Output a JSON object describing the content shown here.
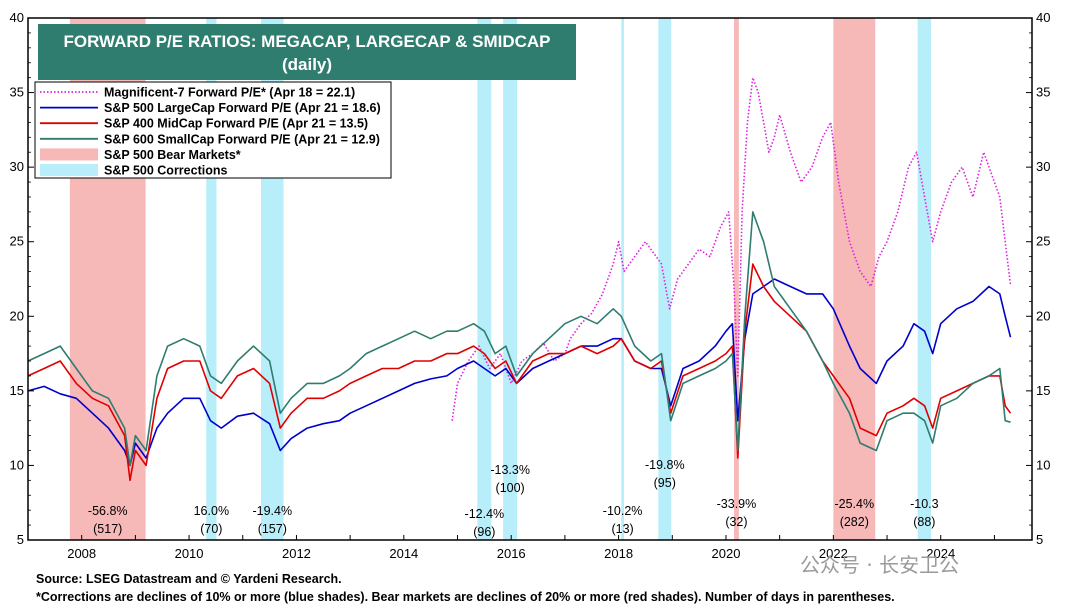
{
  "chart_data": {
    "type": "line",
    "title": "FORWARD P/E RATIOS: MEGACAP, LARGECAP & SMIDCAP",
    "subtitle": "(daily)",
    "xlim": [
      2007.0,
      2025.7
    ],
    "ylim": [
      5,
      40
    ],
    "x_ticks": [
      2008,
      2010,
      2012,
      2014,
      2016,
      2018,
      2020,
      2022,
      2024
    ],
    "y_ticks": [
      5,
      10,
      15,
      20,
      25,
      30,
      35,
      40
    ],
    "legend_position": "top-left",
    "legend": [
      {
        "label": "Magnificent-7 Forward P/E* (Apr 18 = 22.1)",
        "color": "#e020e0",
        "style": "dotted"
      },
      {
        "label": "S&P 500 LargeCap Forward P/E (Apr 21 = 18.6)",
        "color": "#0000cc",
        "style": "solid"
      },
      {
        "label": "S&P 400 MidCap Forward P/E (Apr 21 = 13.5)",
        "color": "#e00000",
        "style": "solid"
      },
      {
        "label": "S&P 600 SmallCap Forward P/E (Apr 21 = 12.9)",
        "color": "#2e7d6e",
        "style": "solid"
      },
      {
        "label": "S&P 500 Bear Markets*",
        "color": "#f7b8b8",
        "style": "box"
      },
      {
        "label": "S&P 500 Corrections",
        "color": "#b8eefa",
        "style": "box"
      }
    ],
    "bear_markets": [
      {
        "start": 2007.78,
        "end": 2009.19,
        "pct": "-56.8%",
        "days": "(517)"
      },
      {
        "start": 2020.15,
        "end": 2020.24,
        "pct": "-33.9%",
        "days": "(32)"
      },
      {
        "start": 2022.0,
        "end": 2022.78,
        "pct": "-25.4%",
        "days": "(282)"
      }
    ],
    "corrections": [
      {
        "start": 2010.32,
        "end": 2010.51,
        "pct": "16.0%",
        "days": "(70)"
      },
      {
        "start": 2011.34,
        "end": 2011.76,
        "pct": "-19.4%",
        "days": "(157)"
      },
      {
        "start": 2015.37,
        "end": 2015.63,
        "pct": "-12.4%",
        "days": "(96)"
      },
      {
        "start": 2015.85,
        "end": 2016.11,
        "pct": "-13.3%",
        "days": "(100)"
      },
      {
        "start": 2018.05,
        "end": 2018.1,
        "pct": "-10.2%",
        "days": "(13)"
      },
      {
        "start": 2018.74,
        "end": 2018.98,
        "pct": "-19.8%",
        "days": "(95)"
      },
      {
        "start": 2023.57,
        "end": 2023.82,
        "pct": "-10.3",
        "days": "(88)"
      }
    ],
    "series": [
      {
        "name": "Magnificent-7 Forward P/E*",
        "color": "#e020e0",
        "dash": "1.5,2",
        "x": [
          2014.9,
          2015.0,
          2015.2,
          2015.4,
          2015.6,
          2015.8,
          2016.0,
          2016.2,
          2016.4,
          2016.6,
          2016.8,
          2017.0,
          2017.1,
          2017.3,
          2017.5,
          2017.7,
          2017.9,
          2018.0,
          2018.1,
          2018.3,
          2018.5,
          2018.7,
          2018.8,
          2018.95,
          2019.1,
          2019.3,
          2019.5,
          2019.7,
          2019.9,
          2020.05,
          2020.15,
          2020.22,
          2020.3,
          2020.4,
          2020.5,
          2020.6,
          2020.7,
          2020.8,
          2020.9,
          2021.0,
          2021.2,
          2021.4,
          2021.6,
          2021.8,
          2021.95,
          2022.1,
          2022.3,
          2022.5,
          2022.7,
          2022.85,
          2023.0,
          2023.2,
          2023.4,
          2023.55,
          2023.7,
          2023.85,
          2024.0,
          2024.2,
          2024.4,
          2024.6,
          2024.8,
          2024.95,
          2025.1,
          2025.2,
          2025.3
        ],
        "y": [
          13.0,
          15.5,
          17.0,
          18.0,
          16.5,
          17.5,
          15.5,
          17.0,
          17.5,
          18.2,
          17.0,
          17.5,
          18.5,
          19.5,
          20.2,
          21.5,
          23.5,
          25.0,
          23.0,
          24.0,
          25.0,
          24.0,
          23.5,
          20.5,
          22.5,
          23.5,
          24.5,
          24.0,
          26.0,
          27.0,
          22.0,
          16.0,
          27.0,
          33.0,
          36.0,
          35.0,
          33.0,
          31.0,
          32.0,
          33.5,
          31.0,
          29.0,
          30.0,
          32.0,
          33.0,
          29.0,
          25.0,
          23.0,
          22.0,
          24.0,
          25.0,
          27.0,
          30.0,
          31.0,
          28.0,
          25.0,
          27.0,
          29.0,
          30.0,
          28.0,
          31.0,
          29.5,
          28.0,
          25.0,
          22.1
        ]
      },
      {
        "name": "S&P 500 LargeCap Forward P/E",
        "color": "#0000cc",
        "dash": "",
        "x": [
          2007.0,
          2007.3,
          2007.6,
          2007.9,
          2008.2,
          2008.5,
          2008.8,
          2008.9,
          2009.0,
          2009.2,
          2009.4,
          2009.6,
          2009.9,
          2010.2,
          2010.4,
          2010.6,
          2010.9,
          2011.2,
          2011.5,
          2011.7,
          2011.9,
          2012.2,
          2012.5,
          2012.8,
          2013.0,
          2013.3,
          2013.6,
          2013.9,
          2014.2,
          2014.5,
          2014.8,
          2015.0,
          2015.3,
          2015.5,
          2015.7,
          2015.9,
          2016.1,
          2016.4,
          2016.7,
          2017.0,
          2017.3,
          2017.6,
          2017.9,
          2018.05,
          2018.3,
          2018.6,
          2018.8,
          2018.97,
          2019.2,
          2019.5,
          2019.8,
          2020.0,
          2020.12,
          2020.22,
          2020.35,
          2020.5,
          2020.7,
          2020.9,
          2021.2,
          2021.5,
          2021.8,
          2022.0,
          2022.3,
          2022.5,
          2022.8,
          2023.0,
          2023.3,
          2023.5,
          2023.7,
          2023.85,
          2024.0,
          2024.3,
          2024.6,
          2024.9,
          2025.1,
          2025.2,
          2025.3
        ],
        "y": [
          15.0,
          15.3,
          14.8,
          14.5,
          13.5,
          12.5,
          11.0,
          10.0,
          11.5,
          10.5,
          12.5,
          13.5,
          14.5,
          14.5,
          13.0,
          12.5,
          13.3,
          13.5,
          12.8,
          11.0,
          11.8,
          12.5,
          12.8,
          13.0,
          13.5,
          14.0,
          14.5,
          15.0,
          15.5,
          15.8,
          16.0,
          16.5,
          17.0,
          16.5,
          16.0,
          16.5,
          15.5,
          16.5,
          17.0,
          17.5,
          18.0,
          18.0,
          18.5,
          18.5,
          17.0,
          16.5,
          16.5,
          14.0,
          16.5,
          17.0,
          18.0,
          19.0,
          19.5,
          13.0,
          18.5,
          21.5,
          22.0,
          22.5,
          22.0,
          21.5,
          21.5,
          20.5,
          18.0,
          16.5,
          15.5,
          17.0,
          18.0,
          19.5,
          19.0,
          17.5,
          19.5,
          20.5,
          21.0,
          22.0,
          21.5,
          20.0,
          18.6
        ]
      },
      {
        "name": "S&P 400 MidCap Forward P/E",
        "color": "#e00000",
        "dash": "",
        "x": [
          2007.0,
          2007.3,
          2007.6,
          2007.9,
          2008.2,
          2008.5,
          2008.8,
          2008.9,
          2009.0,
          2009.2,
          2009.4,
          2009.6,
          2009.9,
          2010.2,
          2010.4,
          2010.6,
          2010.9,
          2011.2,
          2011.5,
          2011.7,
          2011.9,
          2012.2,
          2012.5,
          2012.8,
          2013.0,
          2013.3,
          2013.6,
          2013.9,
          2014.2,
          2014.5,
          2014.8,
          2015.0,
          2015.3,
          2015.5,
          2015.7,
          2015.9,
          2016.1,
          2016.4,
          2016.7,
          2017.0,
          2017.3,
          2017.6,
          2017.9,
          2018.05,
          2018.3,
          2018.6,
          2018.8,
          2018.97,
          2019.2,
          2019.5,
          2019.8,
          2020.0,
          2020.12,
          2020.22,
          2020.35,
          2020.5,
          2020.7,
          2020.9,
          2021.2,
          2021.5,
          2021.8,
          2022.0,
          2022.3,
          2022.5,
          2022.8,
          2023.0,
          2023.3,
          2023.5,
          2023.7,
          2023.85,
          2024.0,
          2024.3,
          2024.6,
          2024.9,
          2025.1,
          2025.2,
          2025.3
        ],
        "y": [
          16.0,
          16.5,
          17.0,
          15.5,
          14.5,
          14.0,
          12.0,
          9.0,
          11.0,
          10.0,
          14.5,
          16.5,
          17.0,
          17.0,
          15.0,
          14.5,
          16.0,
          16.5,
          15.5,
          12.5,
          13.5,
          14.5,
          14.5,
          15.0,
          15.5,
          16.0,
          16.5,
          16.5,
          17.0,
          17.0,
          17.5,
          17.5,
          18.0,
          17.5,
          16.5,
          17.0,
          15.5,
          17.0,
          17.5,
          17.5,
          18.0,
          17.5,
          18.0,
          18.5,
          17.0,
          16.5,
          17.0,
          13.5,
          16.0,
          16.5,
          17.0,
          17.5,
          18.0,
          10.5,
          19.0,
          23.5,
          22.0,
          21.0,
          20.0,
          19.0,
          17.0,
          16.0,
          14.5,
          12.5,
          12.0,
          13.5,
          14.0,
          14.5,
          14.0,
          12.5,
          14.5,
          15.0,
          15.5,
          16.0,
          16.0,
          14.0,
          13.5
        ]
      },
      {
        "name": "S&P 600 SmallCap Forward P/E",
        "color": "#2e7d6e",
        "dash": "",
        "x": [
          2007.0,
          2007.3,
          2007.6,
          2007.9,
          2008.2,
          2008.5,
          2008.8,
          2008.9,
          2009.0,
          2009.2,
          2009.4,
          2009.6,
          2009.9,
          2010.2,
          2010.4,
          2010.6,
          2010.9,
          2011.2,
          2011.5,
          2011.7,
          2011.9,
          2012.2,
          2012.5,
          2012.8,
          2013.0,
          2013.3,
          2013.6,
          2013.9,
          2014.2,
          2014.5,
          2014.8,
          2015.0,
          2015.3,
          2015.5,
          2015.7,
          2015.9,
          2016.1,
          2016.4,
          2016.7,
          2017.0,
          2017.3,
          2017.6,
          2017.9,
          2018.05,
          2018.3,
          2018.6,
          2018.8,
          2018.97,
          2019.2,
          2019.5,
          2019.8,
          2020.0,
          2020.12,
          2020.22,
          2020.35,
          2020.5,
          2020.7,
          2020.9,
          2021.2,
          2021.5,
          2021.8,
          2022.0,
          2022.3,
          2022.5,
          2022.8,
          2023.0,
          2023.3,
          2023.5,
          2023.7,
          2023.85,
          2024.0,
          2024.3,
          2024.6,
          2024.9,
          2025.1,
          2025.2,
          2025.3
        ],
        "y": [
          17.0,
          17.5,
          18.0,
          16.5,
          15.0,
          14.5,
          12.5,
          10.0,
          12.0,
          11.0,
          16.0,
          18.0,
          18.5,
          18.0,
          16.0,
          15.5,
          17.0,
          18.0,
          17.0,
          13.5,
          14.5,
          15.5,
          15.5,
          16.0,
          16.5,
          17.5,
          18.0,
          18.5,
          19.0,
          18.5,
          19.0,
          19.0,
          19.5,
          19.0,
          17.5,
          18.0,
          16.0,
          17.5,
          18.5,
          19.5,
          20.0,
          19.5,
          20.5,
          20.0,
          18.0,
          17.0,
          17.5,
          13.0,
          15.5,
          16.0,
          16.5,
          17.0,
          17.5,
          11.0,
          20.0,
          27.0,
          25.0,
          22.0,
          20.5,
          19.0,
          17.0,
          15.5,
          13.5,
          11.5,
          11.0,
          13.0,
          13.5,
          13.5,
          13.0,
          11.5,
          14.0,
          14.5,
          15.5,
          16.0,
          16.5,
          13.0,
          12.9
        ]
      }
    ]
  },
  "footer": {
    "source": "Source: LSEG Datastream and © Yardeni Research.",
    "note": "*Corrections are declines of 10% or more (blue shades). Bear markets are declines of 20% or more (red shades). Number of days in parentheses."
  },
  "watermark": "公众号 · 长安卫公",
  "colors": {
    "bear": "#f7b8b8",
    "correction": "#b8eefa",
    "title_bg": "#2e7d6e"
  }
}
